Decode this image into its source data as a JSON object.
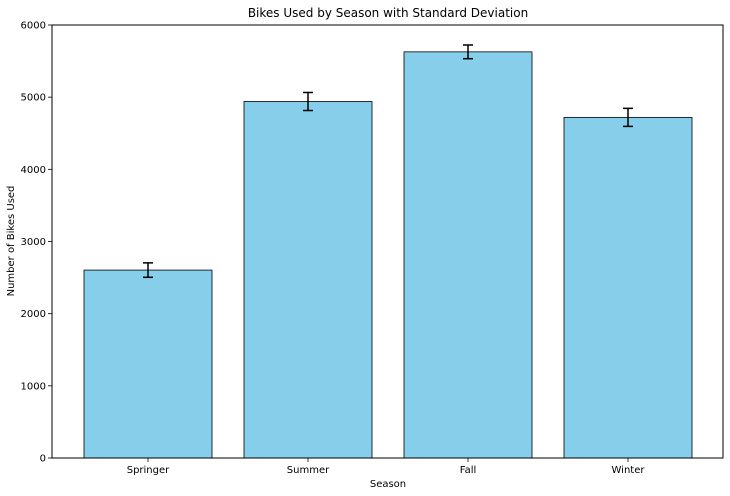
{
  "chart_data": {
    "type": "bar",
    "title": "Bikes Used by Season with Standard Deviation",
    "xlabel": "Season",
    "ylabel": "Number of Bikes Used",
    "categories": [
      "Springer",
      "Summer",
      "Fall",
      "Winter"
    ],
    "values": [
      2604,
      4940,
      5628,
      4720
    ],
    "errors": [
      100,
      125,
      95,
      125
    ],
    "ylim": [
      0,
      6000
    ],
    "yticks": [
      0,
      1000,
      2000,
      3000,
      4000,
      5000,
      6000
    ],
    "grid": false,
    "colors": {
      "bar_fill": "#87ceeb",
      "bar_edge": "#000000",
      "error_bar": "#000000"
    }
  }
}
